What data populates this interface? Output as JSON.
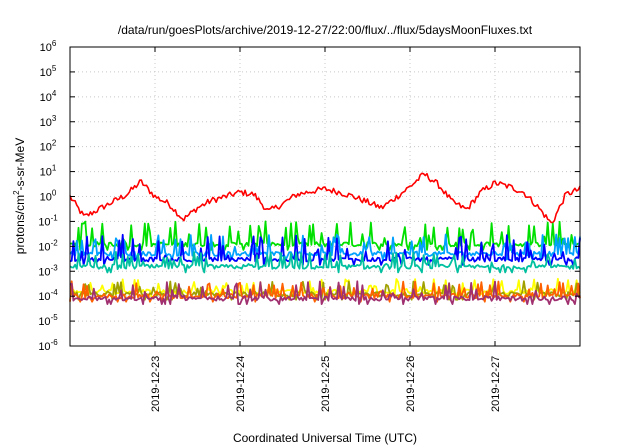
{
  "chart_data": {
    "type": "line",
    "title": "/data/run/goesPlots/archive/2019-12-27/22:00/flux/../flux/5daysMoonFluxes.txt",
    "xlabel": "Coordinated Universal Time (UTC)",
    "ylabel_parts": {
      "pre": "protons/cm",
      "sup": "2",
      "post": "-s-sr-MeV"
    },
    "xlim": [
      "2019-12-22T00:00",
      "2019-12-28T00:00"
    ],
    "ylim": [
      1e-06,
      1000000.0
    ],
    "yscale": "log",
    "grid": true,
    "legend": "none",
    "x_ticks": [
      "2019-12-23",
      "2019-12-24",
      "2019-12-25",
      "2019-12-26",
      "2019-12-27"
    ],
    "y_ticks": [
      {
        "base": "10",
        "exp": "6"
      },
      {
        "base": "10",
        "exp": "5"
      },
      {
        "base": "10",
        "exp": "4"
      },
      {
        "base": "10",
        "exp": "3"
      },
      {
        "base": "10",
        "exp": "2"
      },
      {
        "base": "10",
        "exp": "1"
      },
      {
        "base": "10",
        "exp": "0"
      },
      {
        "base": "10",
        "exp": "-1"
      },
      {
        "base": "10",
        "exp": "-2"
      },
      {
        "base": "10",
        "exp": "-3"
      },
      {
        "base": "10",
        "exp": "-4"
      },
      {
        "base": "10",
        "exp": "-5"
      },
      {
        "base": "10",
        "exp": "-6"
      }
    ],
    "series": [
      {
        "color": "#ff0000",
        "baseline": "varies",
        "x_hours": [
          0,
          4,
          8,
          12,
          16,
          20,
          24,
          28,
          32,
          36,
          40,
          44,
          48,
          52,
          56,
          60,
          64,
          68,
          72,
          76,
          80,
          84,
          88,
          92,
          96,
          100,
          104,
          108,
          112,
          116,
          120,
          124,
          128,
          132,
          136,
          140,
          144
        ],
        "values": [
          1.0,
          0.15,
          0.3,
          0.6,
          1.2,
          4.0,
          1.0,
          0.5,
          0.12,
          0.35,
          0.7,
          1.0,
          1.5,
          1.2,
          0.25,
          0.5,
          1.2,
          1.6,
          2.0,
          1.5,
          1.0,
          0.6,
          0.35,
          0.9,
          2.5,
          8.0,
          3.0,
          0.6,
          0.3,
          1.5,
          3.5,
          2.5,
          1.5,
          0.4,
          0.08,
          1.2,
          2.0
        ]
      },
      {
        "color": "#00e000",
        "baseline": 0.012,
        "spike_peak": 0.1
      },
      {
        "color": "#00a0ff",
        "baseline": 0.005,
        "spike_peak": 0.03
      },
      {
        "color": "#0000ff",
        "baseline": 0.003,
        "spike_peak": 0.03
      },
      {
        "color": "#00c0a0",
        "baseline": 0.0015,
        "spike_peak": 0.006
      },
      {
        "color": "#ffff00",
        "baseline": 0.00015,
        "spike_peak": 0.0005
      },
      {
        "color": "#a0a000",
        "baseline": 0.00012,
        "spike_peak": 0.0004
      },
      {
        "color": "#ff6000",
        "baseline": 0.0001,
        "spike_peak": 0.0004
      },
      {
        "color": "#a03070",
        "baseline": 8e-05,
        "spike_peak": 0.0004
      }
    ]
  }
}
